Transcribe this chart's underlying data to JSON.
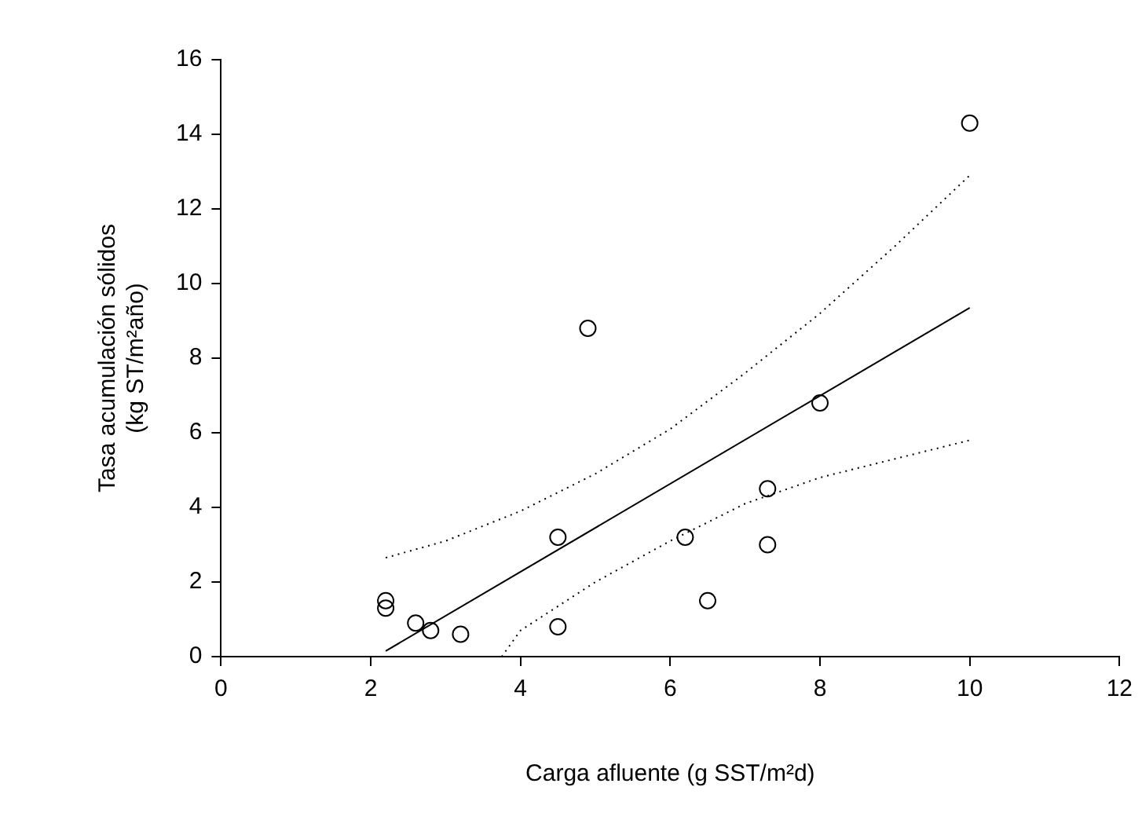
{
  "chart_data": {
    "type": "scatter",
    "xlabel": "Carga afluente (g SST/m²d)",
    "ylabel": "Tasa acumulación sólidos\n(kg ST/m²año)",
    "xlim": [
      0,
      12
    ],
    "ylim": [
      0,
      16
    ],
    "xticks": [
      0,
      2,
      4,
      6,
      8,
      10,
      12
    ],
    "yticks": [
      0,
      2,
      4,
      6,
      8,
      10,
      12,
      14,
      16
    ],
    "grid": false,
    "legend": false,
    "series": [
      {
        "color": "#000000",
        "marker": "circle",
        "x": [
          2.2,
          2.2,
          2.6,
          2.8,
          3.2,
          4.5,
          4.5,
          4.9,
          6.2,
          6.5,
          7.3,
          7.3,
          8.0,
          10.0
        ],
        "values": [
          1.5,
          1.3,
          0.9,
          0.7,
          0.6,
          3.2,
          0.8,
          8.8,
          3.2,
          1.5,
          4.5,
          3.0,
          6.8,
          14.3
        ]
      },
      {
        "type": "line",
        "color": "#000000",
        "marker": "none",
        "line_style": "solid",
        "x": [
          2.2,
          10.0
        ],
        "values": [
          0.15,
          9.35
        ]
      },
      {
        "type": "line",
        "color": "#000000",
        "marker": "none",
        "line_style": "dotted",
        "x": [
          2.2,
          3,
          4,
          5,
          6,
          7,
          8,
          9,
          10
        ],
        "values": [
          2.65,
          3.1,
          3.9,
          4.9,
          6.1,
          7.6,
          9.2,
          11.0,
          12.9
        ]
      },
      {
        "type": "line",
        "color": "#000000",
        "marker": "none",
        "line_style": "dotted",
        "x": [
          3.75,
          4,
          5,
          6,
          7,
          8,
          9,
          10
        ],
        "values": [
          0,
          0.7,
          2.0,
          3.1,
          4.1,
          4.8,
          5.3,
          5.8
        ]
      }
    ]
  }
}
